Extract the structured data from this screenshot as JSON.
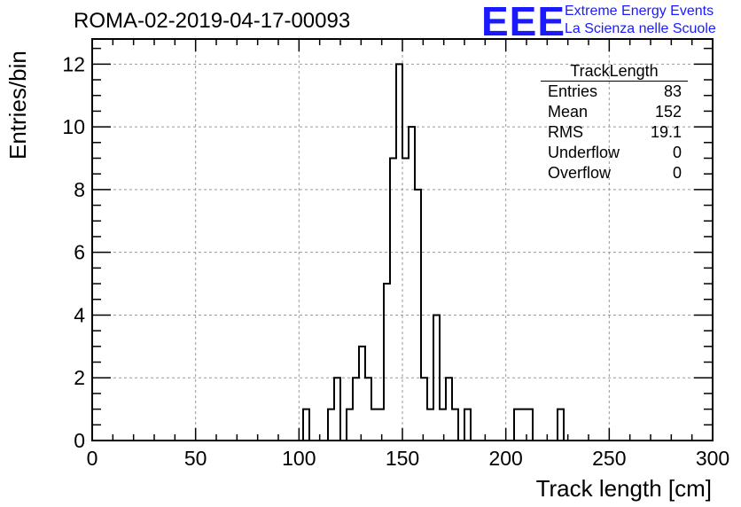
{
  "run_title": "ROMA-02-2019-04-17-00093",
  "logo": {
    "text": "EEE",
    "line1": "Extreme Energy Events",
    "line2": "La Scienza nelle Scuole",
    "color": "#1a1aff"
  },
  "stats_box": {
    "title": "TrackLength",
    "rows": [
      {
        "label": "Entries",
        "value": "83"
      },
      {
        "label": "Mean",
        "value": "152"
      },
      {
        "label": "RMS",
        "value": "19.1"
      },
      {
        "label": "Underflow",
        "value": "0"
      },
      {
        "label": "Overflow",
        "value": "0"
      }
    ]
  },
  "chart_data": {
    "type": "histogram",
    "title": "ROMA-02-2019-04-17-00093",
    "xlabel": "Track length [cm]",
    "ylabel": "Entries/bin",
    "xlim": [
      0,
      300
    ],
    "ylim": [
      0,
      12.8
    ],
    "bin_width": 3,
    "grid": true,
    "line_color": "#000000",
    "x_ticks": [
      0,
      50,
      100,
      150,
      200,
      250,
      300
    ],
    "y_ticks": [
      0,
      2,
      4,
      6,
      8,
      10,
      12
    ],
    "bins": [
      {
        "x0": 102,
        "count": 1
      },
      {
        "x0": 114,
        "count": 1
      },
      {
        "x0": 117,
        "count": 2
      },
      {
        "x0": 123,
        "count": 1
      },
      {
        "x0": 126,
        "count": 2
      },
      {
        "x0": 129,
        "count": 3
      },
      {
        "x0": 132,
        "count": 2
      },
      {
        "x0": 135,
        "count": 1
      },
      {
        "x0": 138,
        "count": 1
      },
      {
        "x0": 141,
        "count": 5
      },
      {
        "x0": 144,
        "count": 9
      },
      {
        "x0": 147,
        "count": 12
      },
      {
        "x0": 150,
        "count": 9
      },
      {
        "x0": 153,
        "count": 10
      },
      {
        "x0": 156,
        "count": 8
      },
      {
        "x0": 159,
        "count": 2
      },
      {
        "x0": 162,
        "count": 1
      },
      {
        "x0": 165,
        "count": 4
      },
      {
        "x0": 168,
        "count": 1
      },
      {
        "x0": 171,
        "count": 2
      },
      {
        "x0": 174,
        "count": 1
      },
      {
        "x0": 180,
        "count": 1
      },
      {
        "x0": 204,
        "count": 1
      },
      {
        "x0": 207,
        "count": 1
      },
      {
        "x0": 210,
        "count": 1
      },
      {
        "x0": 225,
        "count": 1
      }
    ]
  }
}
